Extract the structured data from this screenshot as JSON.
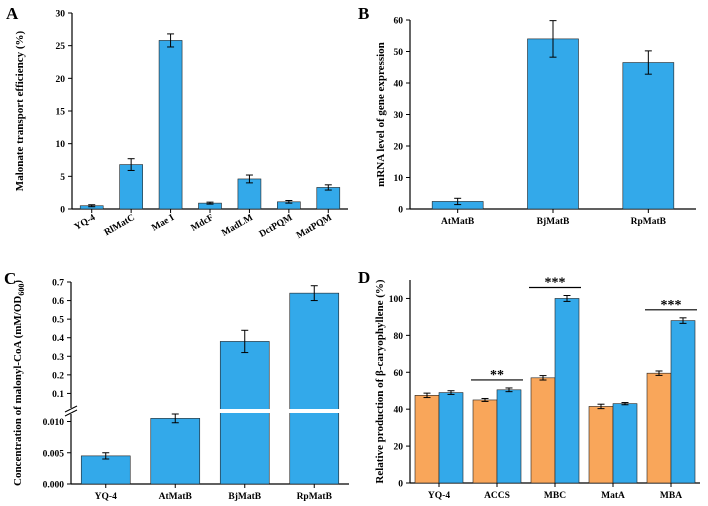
{
  "colors": {
    "blue": "#33a9ea",
    "orange": "#f9a65a",
    "axis": "#000000"
  },
  "chart_data": [
    {
      "panel": "A",
      "type": "bar",
      "ylabel": "Malonate transport efficiency (%)",
      "ylim": [
        0,
        30
      ],
      "yticks": [
        0,
        5,
        10,
        15,
        20,
        25,
        30
      ],
      "categories": [
        "YQ-4",
        "RlMatC",
        "Mae I",
        "MdcF",
        "MadLM",
        "DctPQM",
        "MatPQM"
      ],
      "series": [
        {
          "values": [
            0.5,
            6.8,
            25.8,
            0.9,
            4.6,
            1.1,
            3.3
          ],
          "errors": [
            0.15,
            0.9,
            1.0,
            0.15,
            0.6,
            0.2,
            0.4
          ],
          "color": "#33a9ea"
        }
      ]
    },
    {
      "panel": "B",
      "type": "bar",
      "ylabel": "mRNA level of gene expression",
      "ylim": [
        0,
        60
      ],
      "yticks": [
        0,
        10,
        20,
        30,
        40,
        50,
        60
      ],
      "categories": [
        "AtMatB",
        "BjMatB",
        "RpMatB"
      ],
      "series": [
        {
          "values": [
            2.4,
            54.0,
            46.5
          ],
          "errors": [
            1.0,
            5.8,
            3.7
          ],
          "color": "#33a9ea"
        }
      ]
    },
    {
      "panel": "C",
      "type": "bar",
      "ylabel": "Concentration of malonyl-CoA (mM/OD",
      "ylabel_sub": "600",
      "ylabel_end": ")",
      "ylim_lower": [
        0,
        0.012
      ],
      "yticks_lower": [
        "0.000",
        "0.005",
        "0.010"
      ],
      "ylim_upper": [
        0,
        0.7
      ],
      "yticks_upper": [
        "0.1",
        "0.2",
        "0.3",
        "0.4",
        "0.5",
        "0.6",
        "0.7"
      ],
      "axis_break": true,
      "categories": [
        "YQ-4",
        "AtMatB",
        "BjMatB",
        "RpMatB"
      ],
      "series": [
        {
          "values": [
            0.0045,
            0.0105,
            0.38,
            0.64
          ],
          "errors": [
            0.0005,
            0.0007,
            0.06,
            0.04
          ],
          "color": "#33a9ea"
        }
      ]
    },
    {
      "panel": "D",
      "type": "bar",
      "ylabel": "Relative production of β-caryophyllene (%)",
      "ylim": [
        0,
        110
      ],
      "yticks": [
        0,
        20,
        40,
        60,
        80,
        100
      ],
      "categories": [
        "YQ-4",
        "ACCS",
        "MBC",
        "MatA",
        "MBA"
      ],
      "series": [
        {
          "values": [
            47.5,
            45.0,
            57.0,
            41.5,
            59.5
          ],
          "errors": [
            1.2,
            0.8,
            1.2,
            1.2,
            1.2
          ],
          "color": "#f9a65a"
        },
        {
          "values": [
            49.0,
            50.5,
            100.0,
            43.0,
            88.0
          ],
          "errors": [
            1.0,
            1.0,
            1.6,
            0.6,
            1.5
          ],
          "color": "#33a9ea"
        }
      ],
      "significance": [
        {
          "category": "ACCS",
          "label": "**"
        },
        {
          "category": "MBC",
          "label": "***"
        },
        {
          "category": "MBA",
          "label": "***"
        }
      ]
    }
  ]
}
